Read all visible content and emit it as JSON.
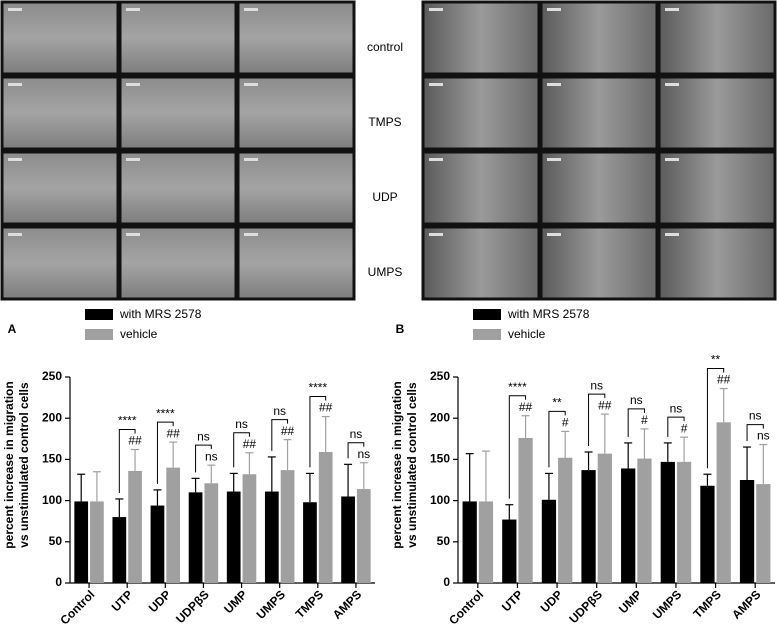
{
  "image_rows": [
    "control",
    "TMPS",
    "UDP",
    "UMPS"
  ],
  "chart_data": [
    {
      "type": "bar",
      "label": "A",
      "ylabel": [
        "percent increase in migration",
        "vs unstimulated control cells"
      ],
      "categories": [
        "Control",
        "UTP",
        "UDP",
        "UDPβS",
        "UMP",
        "UMPS",
        "TMPS",
        "AMPS"
      ],
      "series": [
        {
          "name": "with MRS 2578",
          "color": "#000000",
          "values": [
            99,
            80,
            94,
            110,
            111,
            111,
            98,
            105
          ],
          "errors": [
            33,
            22,
            19,
            17,
            22,
            42,
            35,
            39
          ]
        },
        {
          "name": "vehicle",
          "color": "#a0a0a0",
          "values": [
            99,
            136,
            140,
            121,
            132,
            137,
            159,
            114
          ],
          "errors": [
            36,
            26,
            31,
            22,
            26,
            37,
            43,
            32
          ]
        }
      ],
      "brackets": [
        null,
        "****",
        "****",
        "ns",
        "ns",
        "ns",
        "****",
        "ns"
      ],
      "hashes": [
        null,
        "##",
        "##",
        "ns",
        "##",
        "##",
        "##",
        "ns"
      ],
      "ylim": [
        0,
        250
      ],
      "yticks": [
        0,
        50,
        100,
        150,
        200,
        250
      ]
    },
    {
      "type": "bar",
      "label": "B",
      "ylabel": [
        "percent increase in migration",
        "vs unstimulated control cells"
      ],
      "categories": [
        "Control",
        "UTP",
        "UDP",
        "UDPβS",
        "UMP",
        "UMPS",
        "TMPS",
        "AMPS"
      ],
      "series": [
        {
          "name": "with MRS 2578",
          "color": "#000000",
          "values": [
            99,
            77,
            101,
            137,
            139,
            147,
            118,
            125
          ],
          "errors": [
            58,
            18,
            32,
            22,
            31,
            23,
            14,
            40
          ]
        },
        {
          "name": "vehicle",
          "color": "#a0a0a0",
          "values": [
            99,
            176,
            152,
            157,
            151,
            147,
            195,
            120
          ],
          "errors": [
            61,
            27,
            32,
            48,
            36,
            30,
            41,
            48
          ]
        }
      ],
      "brackets": [
        null,
        "****",
        "**",
        "ns",
        "ns",
        "ns",
        "**",
        "ns"
      ],
      "hashes": [
        null,
        "##",
        "#",
        "##",
        "#",
        "#",
        "##",
        "ns"
      ],
      "ylim": [
        0,
        250
      ],
      "yticks": [
        0,
        50,
        100,
        150,
        200,
        250
      ]
    }
  ]
}
